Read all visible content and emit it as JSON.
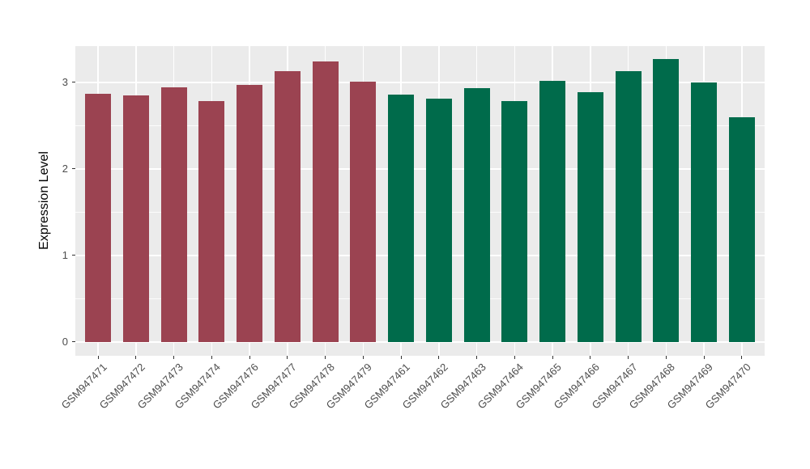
{
  "chart_data": {
    "type": "bar",
    "title": "",
    "xlabel": "",
    "ylabel": "Expression Level",
    "ylim": [
      -0.16,
      3.42
    ],
    "yticks": [
      0,
      1,
      2,
      3
    ],
    "yticks_minor": [
      0.5,
      1.5,
      2.5
    ],
    "grid": true,
    "legend": false,
    "panel_bg": "#EBEBEB",
    "gridline_color": "#FFFFFF",
    "tick_color": "#333333",
    "axis_text_color": "#4D4D4D",
    "categories": [
      "GSM947471",
      "GSM947472",
      "GSM947473",
      "GSM947474",
      "GSM947476",
      "GSM947477",
      "GSM947478",
      "GSM947479",
      "GSM947461",
      "GSM947462",
      "GSM947463",
      "GSM947464",
      "GSM947465",
      "GSM947466",
      "GSM947467",
      "GSM947468",
      "GSM947469",
      "GSM947470"
    ],
    "values": [
      2.87,
      2.85,
      2.94,
      2.78,
      2.97,
      3.13,
      3.24,
      3.01,
      2.86,
      2.81,
      2.93,
      2.78,
      3.02,
      2.89,
      3.13,
      3.27,
      3.0,
      2.6
    ],
    "bar_groups": [
      "group1",
      "group1",
      "group1",
      "group1",
      "group1",
      "group1",
      "group1",
      "group1",
      "group2",
      "group2",
      "group2",
      "group2",
      "group2",
      "group2",
      "group2",
      "group2",
      "group2",
      "group2"
    ],
    "group_colors": {
      "group1": "#9B4351",
      "group2": "#006B4B"
    }
  }
}
